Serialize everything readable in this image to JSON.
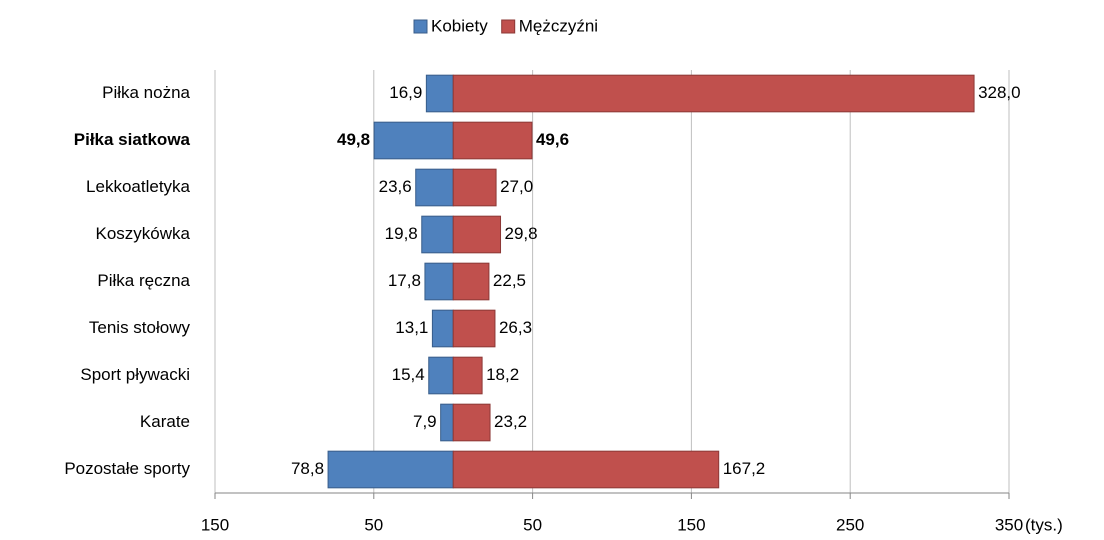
{
  "chart_data": {
    "type": "butterfly_bar",
    "categories": [
      "Piłka nożna",
      "Piłka siatkowa",
      "Lekkoatletyka",
      "Koszykówka",
      "Piłka ręczna",
      "Tenis stołowy",
      "Sport pływacki",
      "Karate",
      "Pozostałe sporty"
    ],
    "bold": [
      false,
      true,
      false,
      false,
      false,
      false,
      false,
      false,
      false
    ],
    "series": [
      {
        "name": "Kobiety",
        "color": "#4f81bd",
        "side": "left",
        "values": [
          16.9,
          49.8,
          23.6,
          19.8,
          17.8,
          13.1,
          15.4,
          7.9,
          78.8
        ],
        "value_labels": [
          "16,9",
          "49,8",
          "23,6",
          "19,8",
          "17,8",
          "13,1",
          "15,4",
          "7,9",
          "78,8"
        ]
      },
      {
        "name": "Mężczyźni",
        "color": "#c0504d",
        "side": "right",
        "values": [
          328.0,
          49.6,
          27.0,
          29.8,
          22.5,
          26.3,
          18.2,
          23.2,
          167.2
        ],
        "value_labels": [
          "328,0",
          "49,6",
          "27,0",
          "29,8",
          "22,5",
          "26,3",
          "18,2",
          "23,2",
          "167,2"
        ]
      }
    ],
    "xlim": [
      -150,
      350
    ],
    "xticks": [
      {
        "value": -150,
        "label": "150"
      },
      {
        "value": -50,
        "label": "50"
      },
      50,
      150,
      250,
      350
    ],
    "x_label": "(tys.)",
    "grid": true,
    "legend": "top"
  }
}
